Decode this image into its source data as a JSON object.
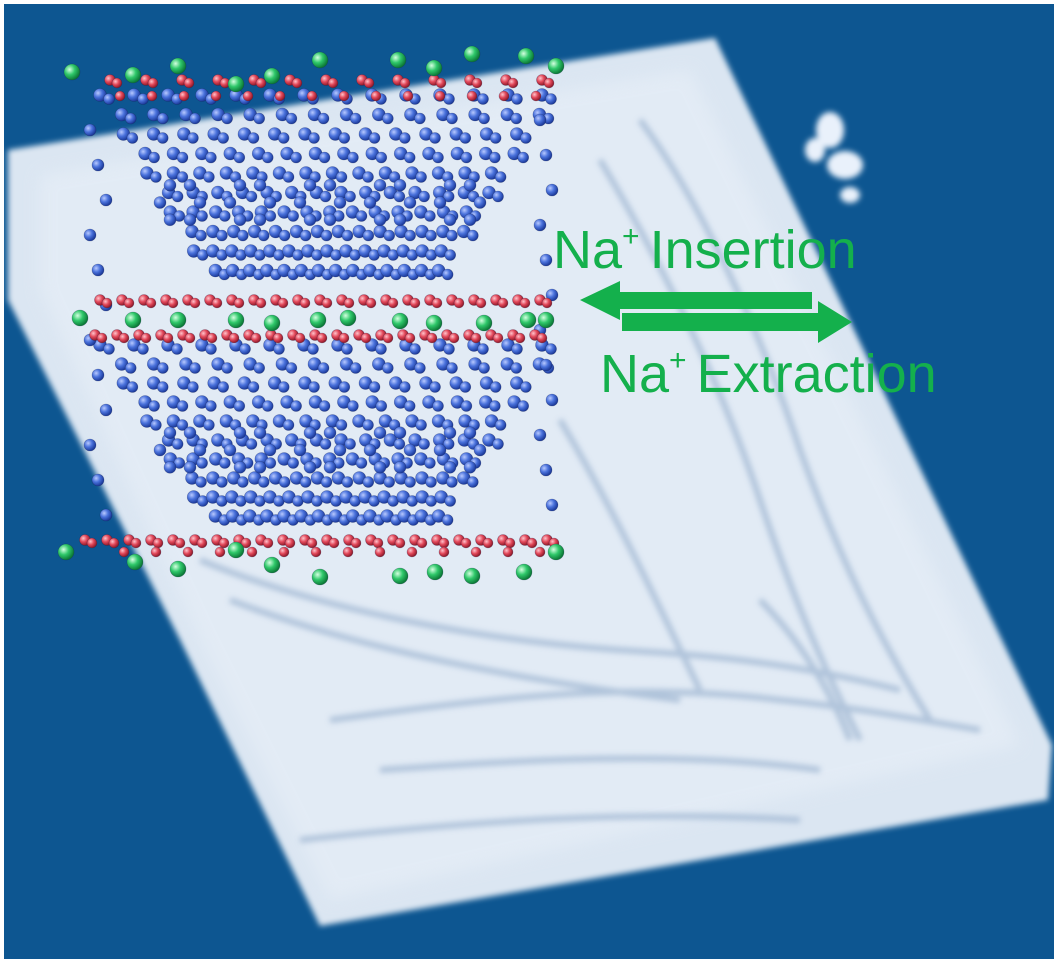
{
  "labels": {
    "insertion": {
      "ion": "Na",
      "charge": "+",
      "text": "Insertion"
    },
    "extraction": {
      "ion": "Na",
      "charge": "+",
      "text": "Extraction"
    }
  },
  "colors": {
    "background": "#0d5691",
    "crystal_flake": "#dfe9f4",
    "framework_atom": "#4a72dc",
    "oxygen_atom": "#e2485a",
    "sodium_ion": "#2fc86a",
    "label_text": "#14b04c",
    "arrow": "#14b04c"
  },
  "arrows": {
    "insertion": "left",
    "extraction": "right"
  }
}
